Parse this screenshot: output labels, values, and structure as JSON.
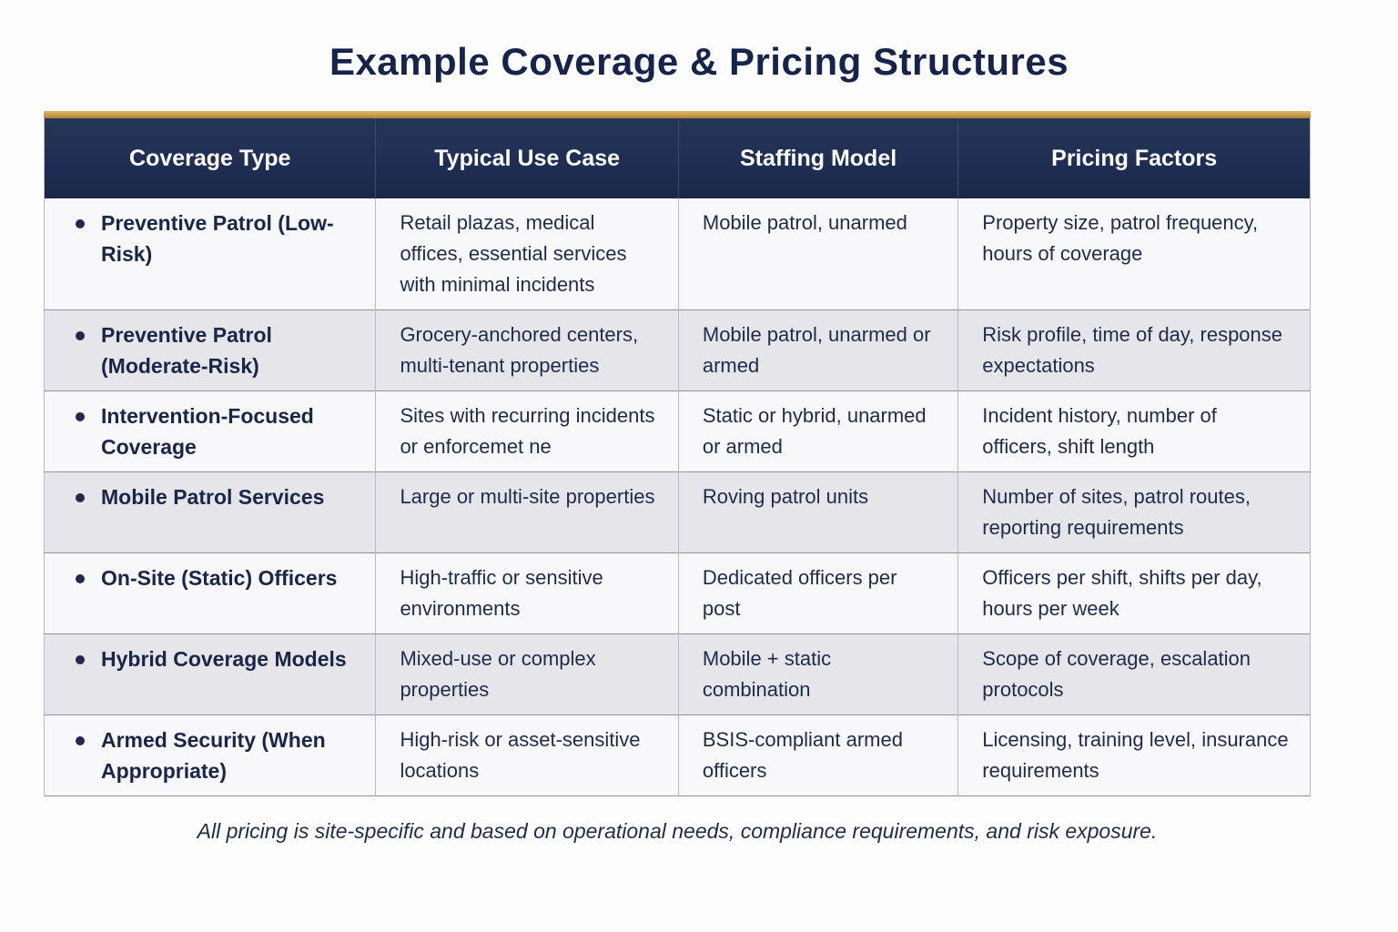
{
  "title": "Example Coverage & Pricing Structures",
  "table": {
    "columns": [
      "Coverage Type",
      "Typical Use Case",
      "Staffing Model",
      "Pricing Factors"
    ],
    "rows": [
      {
        "coverage": "Preventive Patrol (Low-Risk)",
        "use_case": "Retail plazas, medical offices, essential services with minimal incidents",
        "staffing": "Mobile patrol, unarmed",
        "pricing": "Property size, patrol frequency, hours of coverage"
      },
      {
        "coverage": "Preventive Patrol (Moderate-Risk)",
        "use_case": "Grocery-anchored centers, multi-tenant properties",
        "staffing": "Mobile patrol, unarmed or armed",
        "pricing": "Risk profile, time of day, response expectations"
      },
      {
        "coverage": "Intervention-Focused Coverage",
        "use_case": "Sites with recurring incidents or enforcemet ne",
        "staffing": "Static or hybrid, unarmed or armed",
        "pricing": "Incident history, number of officers, shift length"
      },
      {
        "coverage": "Mobile Patrol Services",
        "use_case": "Large or multi-site properties",
        "staffing": "Roving patrol units",
        "pricing": "Number of sites, patrol routes, reporting requirements"
      },
      {
        "coverage": "On-Site (Static) Officers",
        "use_case": "High-traffic or sensitive environments",
        "staffing": "Dedicated officers per post",
        "pricing": "Officers per shift, shifts per day, hours per week"
      },
      {
        "coverage": "Hybrid Coverage Models",
        "use_case": "Mixed-use or complex properties",
        "staffing": "Mobile + static combination",
        "pricing": "Scope of coverage, escalation protocols"
      },
      {
        "coverage": "Armed Security (When Appropriate)",
        "use_case": "High-risk or asset-sensitive locations",
        "staffing": "BSIS-compliant armed officers",
        "pricing": "Licensing, training level, insurance requirements"
      }
    ]
  },
  "footnote": "All pricing is site-specific and based on operational needs, compliance requirements, and risk exposure.",
  "icons": {
    "bullet": "filled-circle"
  },
  "colors": {
    "header_navy": "#1e2d52",
    "accent_gold": "#c79e4c",
    "title_navy": "#16234a",
    "body_text": "#1f2b4a",
    "row_light": "#f8f8fa",
    "row_alt": "#e5e5ea"
  }
}
